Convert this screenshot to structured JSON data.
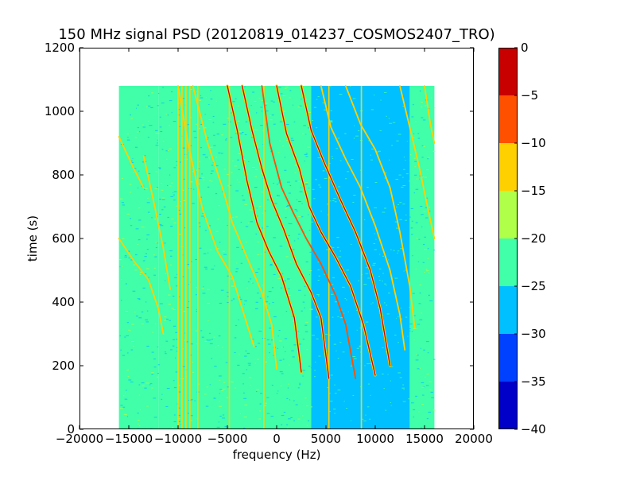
{
  "chart_data": {
    "type": "heatmap",
    "title": "150 MHz signal PSD (20120819_014237_COSMOS2407_TRO)",
    "xlabel": "frequency (Hz)",
    "ylabel": "time (s)",
    "xlim": [
      -20000,
      20000
    ],
    "ylim": [
      0,
      1200
    ],
    "xticks": [
      -20000,
      -15000,
      -10000,
      -5000,
      0,
      5000,
      10000,
      15000,
      20000
    ],
    "xtick_labels": [
      "−20000",
      "−15000",
      "−10000",
      "−5000",
      "0",
      "5000",
      "10000",
      "15000",
      "20000"
    ],
    "yticks": [
      0,
      200,
      400,
      600,
      800,
      1000,
      1200
    ],
    "ytick_labels": [
      "0",
      "200",
      "400",
      "600",
      "800",
      "1000",
      "1200"
    ],
    "data_extent": {
      "x": [
        -16000,
        16000
      ],
      "y": [
        0,
        1080
      ]
    },
    "colorbar": {
      "range": [
        -40,
        0
      ],
      "ticks": [
        0,
        -5,
        -10,
        -15,
        -20,
        -25,
        -30,
        -35,
        -40
      ],
      "tick_labels": [
        "0",
        "−5",
        "−10",
        "−15",
        "−20",
        "−25",
        "−30",
        "−35",
        "−40"
      ],
      "levels": [
        {
          "from": -40,
          "to": -35,
          "color": "#0000c8"
        },
        {
          "from": -35,
          "to": -30,
          "color": "#0040ff"
        },
        {
          "from": -30,
          "to": -25,
          "color": "#00c0ff"
        },
        {
          "from": -25,
          "to": -20,
          "color": "#40ffa8"
        },
        {
          "from": -20,
          "to": -15,
          "color": "#b0ff48"
        },
        {
          "from": -15,
          "to": -10,
          "color": "#ffd000"
        },
        {
          "from": -10,
          "to": -5,
          "color": "#ff5000"
        },
        {
          "from": -5,
          "to": 0,
          "color": "#c80000"
        }
      ]
    },
    "background_regions": [
      {
        "x": [
          -16000,
          -12000
        ],
        "level": -22,
        "color": "#40ffa8"
      },
      {
        "x": [
          -12000,
          3500
        ],
        "level": -24,
        "color": "#40ffa8"
      },
      {
        "x": [
          3500,
          8500
        ],
        "level": -27,
        "color": "#00c0ff"
      },
      {
        "x": [
          8500,
          13500
        ],
        "level": -28,
        "color": "#00c0ff"
      },
      {
        "x": [
          13500,
          16000
        ],
        "level": -22,
        "color": "#40ffa8"
      }
    ],
    "constant_tones_hz": [
      -10000,
      -9600,
      -9200,
      -8800,
      -8000,
      -4800,
      -1300,
      5300,
      8600
    ],
    "drifting_traces": [
      {
        "level": -12,
        "points": [
          [
            -16000,
            920
          ],
          [
            -14500,
            820
          ],
          [
            -13500,
            760
          ]
        ]
      },
      {
        "level": -12,
        "points": [
          [
            -16000,
            600
          ],
          [
            -14500,
            530
          ],
          [
            -13000,
            470
          ],
          [
            -12000,
            380
          ],
          [
            -11500,
            300
          ]
        ]
      },
      {
        "level": -12,
        "points": [
          [
            -13500,
            860
          ],
          [
            -12500,
            720
          ],
          [
            -11500,
            570
          ],
          [
            -10800,
            440
          ]
        ]
      },
      {
        "level": -12,
        "points": [
          [
            -10000,
            1080
          ],
          [
            -9000,
            900
          ],
          [
            -7500,
            690
          ],
          [
            -6000,
            560
          ],
          [
            -4500,
            480
          ],
          [
            -3000,
            330
          ],
          [
            -2300,
            260
          ]
        ]
      },
      {
        "level": -12,
        "points": [
          [
            -8500,
            1080
          ],
          [
            -7000,
            900
          ],
          [
            -5500,
            760
          ],
          [
            -4500,
            650
          ],
          [
            -3000,
            540
          ],
          [
            -1500,
            430
          ],
          [
            -500,
            330
          ],
          [
            0,
            190
          ]
        ]
      },
      {
        "level": -3,
        "points": [
          [
            -5000,
            1080
          ],
          [
            -4000,
            940
          ],
          [
            -3000,
            780
          ],
          [
            -2000,
            650
          ],
          [
            -800,
            560
          ],
          [
            500,
            480
          ],
          [
            1800,
            350
          ],
          [
            2500,
            180
          ]
        ]
      },
      {
        "level": -3,
        "points": [
          [
            -3500,
            1080
          ],
          [
            -2500,
            940
          ],
          [
            -1500,
            820
          ],
          [
            -500,
            720
          ],
          [
            700,
            630
          ],
          [
            2000,
            520
          ],
          [
            3500,
            430
          ],
          [
            4500,
            350
          ],
          [
            5300,
            160
          ]
        ]
      },
      {
        "level": -8,
        "points": [
          [
            -1500,
            1080
          ],
          [
            -700,
            900
          ],
          [
            500,
            760
          ],
          [
            1700,
            680
          ],
          [
            3000,
            600
          ],
          [
            4500,
            520
          ],
          [
            6000,
            420
          ],
          [
            7000,
            330
          ],
          [
            8000,
            160
          ]
        ]
      },
      {
        "level": -3,
        "points": [
          [
            0,
            1080
          ],
          [
            1000,
            930
          ],
          [
            2300,
            820
          ],
          [
            3300,
            700
          ],
          [
            4500,
            620
          ],
          [
            6000,
            540
          ],
          [
            7500,
            450
          ],
          [
            8800,
            330
          ],
          [
            10000,
            170
          ]
        ]
      },
      {
        "level": -3,
        "points": [
          [
            2500,
            1080
          ],
          [
            3500,
            940
          ],
          [
            4800,
            840
          ],
          [
            6500,
            720
          ],
          [
            8000,
            620
          ],
          [
            9500,
            500
          ],
          [
            10500,
            380
          ],
          [
            11500,
            200
          ]
        ]
      },
      {
        "level": -12,
        "points": [
          [
            4500,
            1080
          ],
          [
            5500,
            950
          ],
          [
            7000,
            850
          ],
          [
            8500,
            760
          ],
          [
            10000,
            640
          ],
          [
            11500,
            500
          ],
          [
            12500,
            360
          ],
          [
            13000,
            250
          ]
        ]
      },
      {
        "level": -12,
        "points": [
          [
            7000,
            1080
          ],
          [
            8500,
            960
          ],
          [
            10000,
            880
          ],
          [
            11500,
            760
          ],
          [
            12500,
            620
          ],
          [
            13500,
            450
          ],
          [
            14000,
            320
          ]
        ]
      },
      {
        "level": -12,
        "points": [
          [
            12500,
            1080
          ],
          [
            13500,
            950
          ],
          [
            14500,
            820
          ],
          [
            15300,
            700
          ],
          [
            16000,
            600
          ]
        ]
      },
      {
        "level": -12,
        "points": [
          [
            15000,
            1080
          ],
          [
            15600,
            960
          ],
          [
            16000,
            900
          ]
        ]
      }
    ]
  }
}
